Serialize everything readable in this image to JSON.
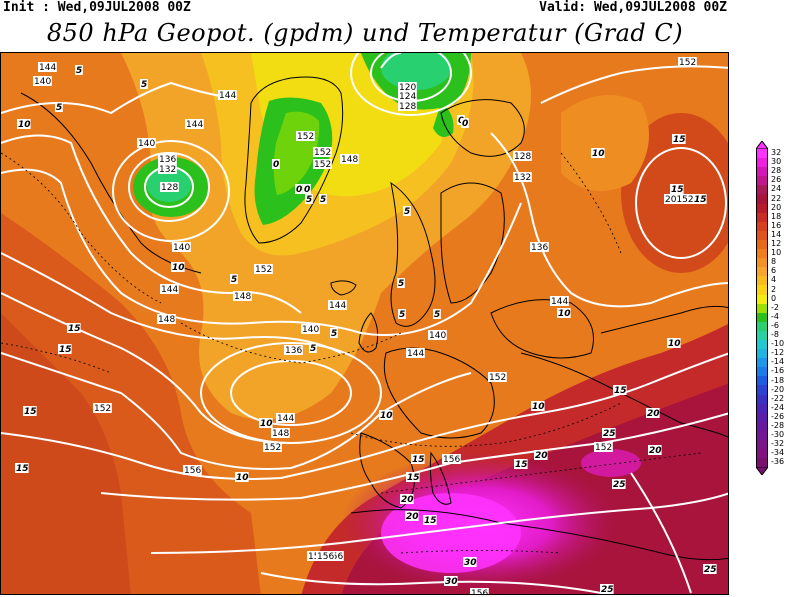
{
  "header": {
    "init": "Init : Wed,09JUL2008 00Z",
    "valid": "Valid: Wed,09JUL2008 00Z",
    "title": "850 hPa Geopot. (gpdm) und Temperatur (Grad C)"
  },
  "legend": {
    "levels": [
      "32",
      "30",
      "28",
      "26",
      "24",
      "22",
      "20",
      "18",
      "16",
      "14",
      "12",
      "10",
      "8",
      "6",
      "4",
      "2",
      "0",
      "-2",
      "-4",
      "-6",
      "-8",
      "-10",
      "-12",
      "-14",
      "-16",
      "-18",
      "-20",
      "-22",
      "-24",
      "-26",
      "-28",
      "-30",
      "-32",
      "-34",
      "-36"
    ],
    "colors": [
      "#ff33ff",
      "#f020e0",
      "#d418b8",
      "#c0168e",
      "#a81a5a",
      "#a8143c",
      "#b81c2c",
      "#c82c22",
      "#d6401c",
      "#de541a",
      "#e66a1a",
      "#ee7e20",
      "#f29226",
      "#f6a62c",
      "#f8bc20",
      "#fad414",
      "#f4ec10",
      "#9ce000",
      "#2cc01c",
      "#28d070",
      "#26d2a4",
      "#22c8d0",
      "#20b4e0",
      "#1e98e6",
      "#1c7ce8",
      "#1c5ce0",
      "#2a44d0",
      "#3c30c2",
      "#4e24b6",
      "#5c1eaa",
      "#6a18a0",
      "#741696",
      "#7c148c",
      "#801282",
      "#7a1070"
    ],
    "top_label": "32",
    "bottom_label": "-36"
  },
  "map": {
    "height_labels": [
      {
        "t": "144"
      },
      {
        "t": "140"
      },
      {
        "t": "144"
      },
      {
        "t": "140"
      },
      {
        "t": "136"
      },
      {
        "t": "132"
      },
      {
        "t": "128"
      },
      {
        "t": "120"
      },
      {
        "t": "124"
      },
      {
        "t": "128"
      },
      {
        "t": "144"
      },
      {
        "t": "152"
      },
      {
        "t": "152"
      },
      {
        "t": "152"
      },
      {
        "t": "148"
      },
      {
        "t": "128"
      },
      {
        "t": "132"
      },
      {
        "t": "136"
      },
      {
        "t": "140"
      },
      {
        "t": "144"
      },
      {
        "t": "152"
      },
      {
        "t": "148"
      },
      {
        "t": "144"
      },
      {
        "t": "140"
      },
      {
        "t": "136"
      },
      {
        "t": "140"
      },
      {
        "t": "144"
      },
      {
        "t": "144"
      },
      {
        "t": "148"
      },
      {
        "t": "152"
      },
      {
        "t": "152"
      },
      {
        "t": "156"
      },
      {
        "t": "156"
      },
      {
        "t": "156"
      },
      {
        "t": "156"
      },
      {
        "t": "156"
      },
      {
        "t": "152"
      },
      {
        "t": "148"
      },
      {
        "t": "152"
      },
      {
        "t": "152"
      },
      {
        "t": "20152"
      },
      {
        "t": "144"
      },
      {
        "t": "156"
      }
    ],
    "temp_labels": [
      {
        "t": "5"
      },
      {
        "t": "5"
      },
      {
        "t": "5"
      },
      {
        "t": "10"
      },
      {
        "t": "0"
      },
      {
        "t": "0"
      },
      {
        "t": "0"
      },
      {
        "t": "5"
      },
      {
        "t": "5"
      },
      {
        "t": "0"
      },
      {
        "t": "5"
      },
      {
        "t": "10"
      },
      {
        "t": "15"
      },
      {
        "t": "15"
      },
      {
        "t": "15"
      },
      {
        "t": "10"
      },
      {
        "t": "5"
      },
      {
        "t": "5"
      },
      {
        "t": "5"
      },
      {
        "t": "5"
      },
      {
        "t": "5"
      },
      {
        "t": "5"
      },
      {
        "t": "10"
      },
      {
        "t": "10"
      },
      {
        "t": "15"
      },
      {
        "t": "15"
      },
      {
        "t": "15"
      },
      {
        "t": "10"
      },
      {
        "t": "10"
      },
      {
        "t": "15"
      },
      {
        "t": "20"
      },
      {
        "t": "20"
      },
      {
        "t": "20"
      },
      {
        "t": "25"
      },
      {
        "t": "20"
      },
      {
        "t": "15"
      },
      {
        "t": "20"
      },
      {
        "t": "15"
      },
      {
        "t": "30"
      },
      {
        "t": "30"
      },
      {
        "t": "25"
      },
      {
        "t": "25"
      },
      {
        "t": "25"
      },
      {
        "t": "25"
      },
      {
        "t": "25"
      },
      {
        "t": "15"
      },
      {
        "t": "10"
      },
      {
        "t": "10"
      },
      {
        "t": "15"
      },
      {
        "t": "0"
      },
      {
        "t": "15"
      }
    ]
  }
}
